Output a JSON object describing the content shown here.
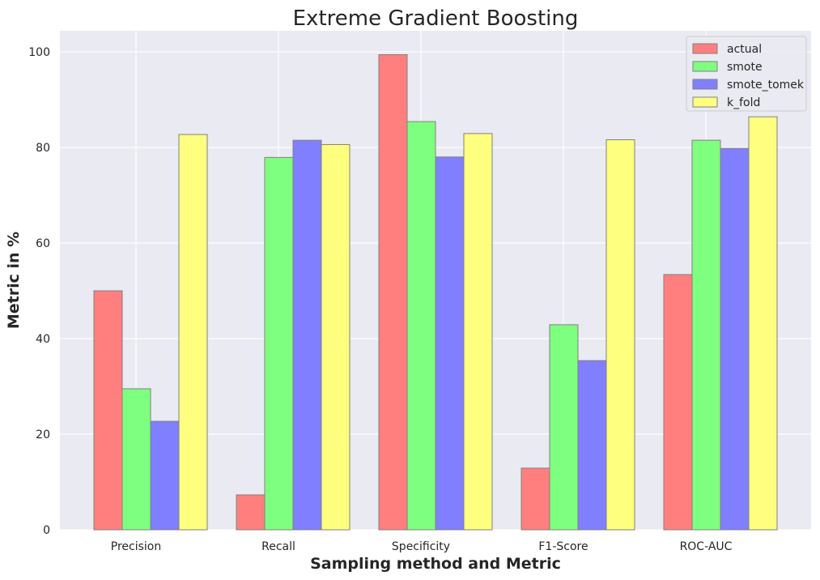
{
  "chart_data": {
    "type": "bar",
    "title": "Extreme Gradient Boosting",
    "xlabel": "Sampling method and Metric",
    "ylabel": "Metric in %",
    "categories": [
      "Precision",
      "Recall",
      "Specificity",
      "F1-Score",
      "ROC-AUC"
    ],
    "series": [
      {
        "name": "actual",
        "color": "#ff7f7f",
        "values": [
          50.0,
          7.3,
          99.4,
          12.9,
          53.4
        ]
      },
      {
        "name": "smote",
        "color": "#7fff7f",
        "values": [
          29.5,
          77.9,
          85.4,
          42.9,
          81.5
        ]
      },
      {
        "name": "smote_tomek",
        "color": "#7f7fff",
        "values": [
          22.7,
          81.5,
          78.0,
          35.4,
          79.8
        ]
      },
      {
        "name": "k_fold",
        "color": "#ffff7f",
        "values": [
          82.7,
          80.6,
          82.9,
          81.6,
          86.4
        ]
      }
    ],
    "ylim": [
      0,
      104.4
    ],
    "yticks": [
      0,
      20,
      40,
      60,
      80,
      100
    ],
    "grid": true,
    "legend_position": "top-right",
    "bar_edge_color": "#808080",
    "background_color": "#eaeaf2",
    "grid_color": "#ffffff"
  }
}
